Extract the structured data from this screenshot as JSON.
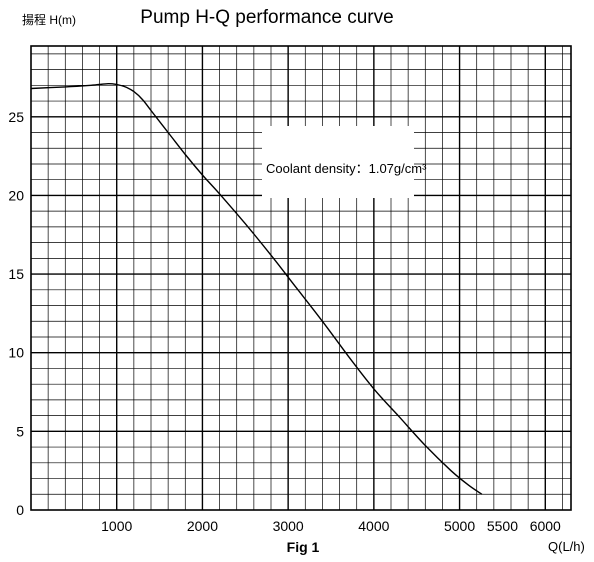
{
  "chart_data": {
    "type": "line",
    "title": "Pump H-Q performance curve",
    "ylabel": "揚程 H(m)",
    "xlabel": "Q(L/h)",
    "caption": "Fig 1",
    "annotation": "Coolant density：1.07g/cm³",
    "xlim": [
      0,
      6300
    ],
    "ylim": [
      0,
      29.5
    ],
    "x_ticks": [
      1000,
      2000,
      3000,
      4000,
      5000,
      5500,
      6000
    ],
    "x_tick_labels": [
      "1000",
      "2000",
      "3000",
      "4000",
      "5000",
      "5500",
      "6000"
    ],
    "y_ticks": [
      0,
      5,
      10,
      15,
      20,
      25
    ],
    "y_tick_labels": [
      "0",
      "5",
      "10",
      "15",
      "20",
      "25"
    ],
    "grid": true,
    "series": [
      {
        "x": [
          0,
          400,
          700,
          900,
          1000,
          1100,
          1200,
          1300,
          1400,
          1600,
          1800,
          2000,
          2200,
          2500,
          2800,
          3100,
          3400,
          3700,
          4000,
          4300,
          4600,
          4900,
          5100,
          5260
        ],
        "y": [
          26.8,
          26.9,
          27.0,
          27.1,
          27.05,
          26.9,
          26.6,
          26.1,
          25.4,
          24.0,
          22.6,
          21.3,
          20.1,
          18.2,
          16.2,
          14.1,
          12.0,
          9.8,
          7.7,
          5.9,
          4.1,
          2.5,
          1.6,
          1.0
        ]
      }
    ]
  }
}
